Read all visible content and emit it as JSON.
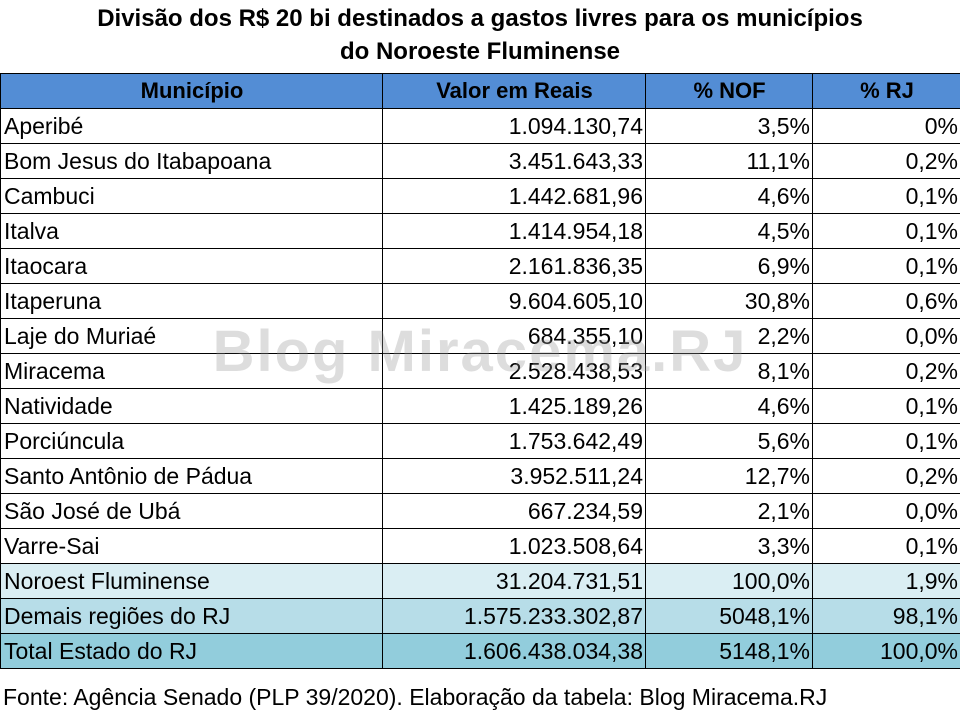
{
  "title": {
    "line1": "Divisão dos R$ 20 bi destinados a gastos livres para os municípios",
    "line2": "do Noroeste Fluminense"
  },
  "table": {
    "headers": [
      "Município",
      "Valor em Reais",
      "% NOF",
      "% RJ"
    ],
    "rows": [
      [
        "Aperibé",
        "1.094.130,74",
        "3,5%",
        "0%"
      ],
      [
        "Bom Jesus do Itabapoana",
        "3.451.643,33",
        "11,1%",
        "0,2%"
      ],
      [
        "Cambuci",
        "1.442.681,96",
        "4,6%",
        "0,1%"
      ],
      [
        "Italva",
        "1.414.954,18",
        "4,5%",
        "0,1%"
      ],
      [
        "Itaocara",
        "2.161.836,35",
        "6,9%",
        "0,1%"
      ],
      [
        "Itaperuna",
        "9.604.605,10",
        "30,8%",
        "0,6%"
      ],
      [
        "Laje do Muriaé",
        "684.355,10",
        "2,2%",
        "0,0%"
      ],
      [
        "Miracema",
        "2.528.438,53",
        "8,1%",
        "0,2%"
      ],
      [
        "Natividade",
        "1.425.189,26",
        "4,6%",
        "0,1%"
      ],
      [
        "Porciúncula",
        "1.753.642,49",
        "5,6%",
        "0,1%"
      ],
      [
        "Santo Antônio de Pádua",
        "3.952.511,24",
        "12,7%",
        "0,2%"
      ],
      [
        "São José de Ubá",
        "667.234,59",
        "2,1%",
        "0,0%"
      ],
      [
        "Varre-Sai",
        "1.023.508,64",
        "3,3%",
        "0,1%"
      ]
    ],
    "summary_rows": [
      [
        "Noroest Fluminense",
        "31.204.731,51",
        "100,0%",
        "1,9%"
      ],
      [
        "Demais regiões do RJ",
        "1.575.233.302,87",
        "5048,1%",
        "98,1%"
      ],
      [
        "Total Estado do RJ",
        "1.606.438.034,38",
        "5148,1%",
        "100,0%"
      ]
    ]
  },
  "source": "Fonte: Agência Senado (PLP 39/2020). Elaboração da tabela: Blog Miracema.RJ",
  "watermark": "Blog Miracema.RJ",
  "colors": {
    "header_bg": "#538dd5",
    "nof_row_bg": "#daeef3",
    "rest_row_bg": "#b7dde8",
    "total_row_bg": "#92cddc"
  }
}
